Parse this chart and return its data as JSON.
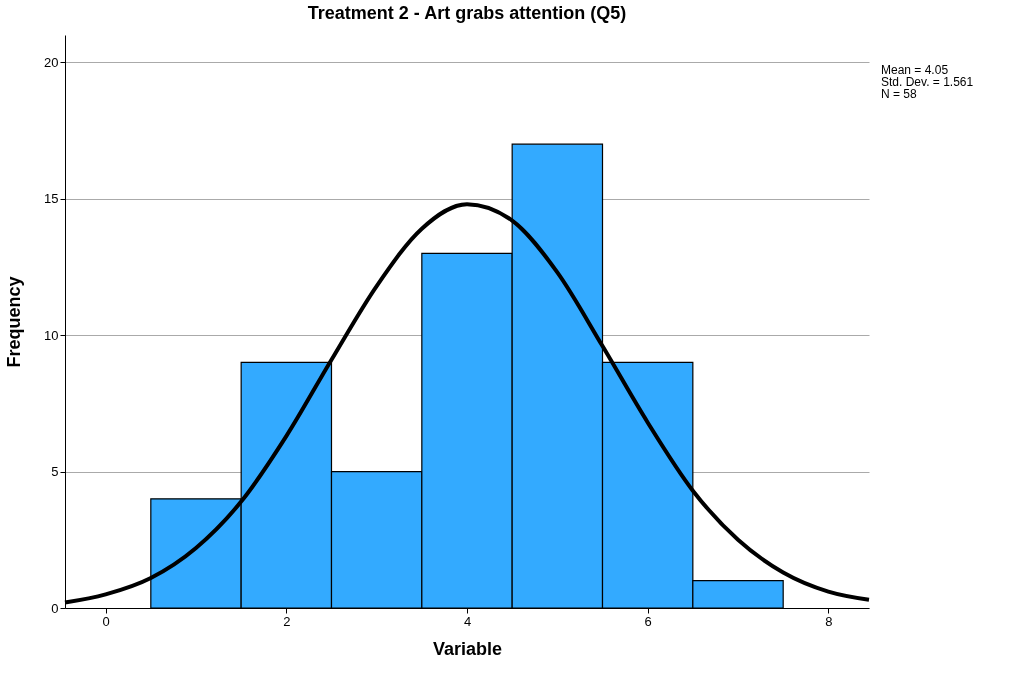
{
  "chart_data": {
    "type": "histogram",
    "title": "Treatment 2 - Art grabs attention (Q5)",
    "xlabel": "Variable",
    "ylabel": "Frequency",
    "bins": [
      0.5,
      1.5,
      2.5,
      3.5,
      4.5,
      5.5,
      6.5,
      7.5
    ],
    "values": [
      4,
      9,
      5,
      13,
      17,
      9,
      1
    ],
    "color": "#33aaff",
    "series": [
      {
        "type": "line",
        "color": "#000000",
        "x": [
          -0.45,
          0,
          0.5,
          1,
          1.5,
          2,
          2.5,
          3,
          3.5,
          4,
          4.5,
          5,
          5.5,
          6,
          6.5,
          7,
          7.5,
          8,
          8.45
        ],
        "values": [
          0.2,
          0.5,
          1.1,
          2.2,
          3.9,
          6.3,
          9.1,
          11.8,
          13.9,
          14.8,
          14.2,
          12.3,
          9.6,
          6.8,
          4.3,
          2.5,
          1.3,
          0.6,
          0.3
        ]
      }
    ],
    "xlim": [
      -0.45,
      8.45
    ],
    "xticks": [
      0,
      2,
      4,
      6,
      8
    ],
    "ylim": [
      0,
      21
    ],
    "yticks": [
      0,
      5,
      10,
      15,
      20
    ],
    "grid": "y",
    "annotations": [
      "Mean = 4.05",
      "Std. Dev. = 1.561",
      "N = 58"
    ]
  }
}
